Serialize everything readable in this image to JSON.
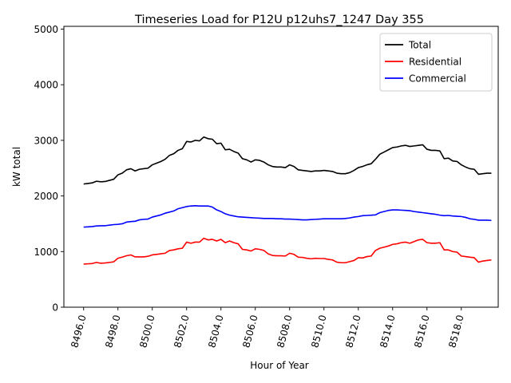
{
  "chart_data": {
    "type": "line",
    "title": "Timeseries Load for P12U p12uhs7_1247  Day 355",
    "xlabel": "Hour of Year",
    "ylabel": "kW total",
    "xlim": [
      8494.85,
      8520.15
    ],
    "ylim": [
      0,
      5050
    ],
    "x_ticks": [
      8496,
      8498,
      8500,
      8502,
      8504,
      8506,
      8508,
      8510,
      8512,
      8514,
      8516,
      8518
    ],
    "x_tick_labels": [
      "8496.0",
      "8498.0",
      "8500.0",
      "8502.0",
      "8504.0",
      "8506.0",
      "8508.0",
      "8510.0",
      "8512.0",
      "8514.0",
      "8516.0",
      "8518.0"
    ],
    "y_ticks": [
      0,
      1000,
      2000,
      3000,
      4000,
      5000
    ],
    "y_tick_labels": [
      "0",
      "1000",
      "2000",
      "3000",
      "4000",
      "5000"
    ],
    "grid": false,
    "legend_position": "top-right",
    "x_start": 8496.0,
    "x_step": 0.25,
    "series": [
      {
        "name": "Total",
        "color": "#000000",
        "values": [
          2215,
          2225,
          2235,
          2265,
          2255,
          2260,
          2280,
          2300,
          2380,
          2410,
          2470,
          2490,
          2450,
          2480,
          2490,
          2500,
          2560,
          2590,
          2620,
          2660,
          2730,
          2760,
          2820,
          2850,
          2980,
          2970,
          3000,
          2990,
          3060,
          3030,
          3020,
          2940,
          2950,
          2830,
          2840,
          2800,
          2770,
          2670,
          2650,
          2610,
          2650,
          2640,
          2610,
          2560,
          2530,
          2520,
          2520,
          2510,
          2560,
          2530,
          2470,
          2460,
          2450,
          2440,
          2450,
          2450,
          2460,
          2450,
          2440,
          2410,
          2400,
          2400,
          2420,
          2460,
          2510,
          2530,
          2560,
          2580,
          2660,
          2750,
          2790,
          2830,
          2870,
          2880,
          2900,
          2910,
          2890,
          2900,
          2910,
          2920,
          2840,
          2820,
          2820,
          2810,
          2670,
          2680,
          2630,
          2620,
          2560,
          2520,
          2490,
          2480,
          2390,
          2400,
          2410,
          2410
        ]
      },
      {
        "name": "Residential",
        "color": "#ff0000",
        "values": [
          775,
          780,
          785,
          805,
          790,
          795,
          805,
          815,
          880,
          900,
          925,
          940,
          905,
          905,
          905,
          915,
          940,
          950,
          960,
          970,
          1020,
          1030,
          1050,
          1060,
          1170,
          1150,
          1170,
          1170,
          1240,
          1210,
          1220,
          1190,
          1220,
          1160,
          1190,
          1160,
          1140,
          1040,
          1030,
          1010,
          1050,
          1040,
          1020,
          960,
          930,
          925,
          925,
          920,
          970,
          950,
          900,
          895,
          880,
          870,
          880,
          875,
          875,
          860,
          850,
          810,
          800,
          800,
          820,
          840,
          890,
          885,
          910,
          920,
          1020,
          1060,
          1080,
          1100,
          1130,
          1140,
          1160,
          1170,
          1150,
          1180,
          1210,
          1220,
          1160,
          1150,
          1150,
          1160,
          1030,
          1030,
          1000,
          990,
          920,
          910,
          900,
          890,
          810,
          830,
          840,
          850
        ]
      },
      {
        "name": "Commercial",
        "color": "#0000ff",
        "values": [
          1440,
          1445,
          1450,
          1460,
          1465,
          1465,
          1475,
          1485,
          1490,
          1500,
          1530,
          1540,
          1545,
          1570,
          1580,
          1585,
          1620,
          1640,
          1660,
          1690,
          1710,
          1730,
          1770,
          1790,
          1810,
          1820,
          1825,
          1820,
          1820,
          1820,
          1800,
          1750,
          1720,
          1680,
          1655,
          1640,
          1625,
          1620,
          1615,
          1610,
          1605,
          1600,
          1595,
          1595,
          1595,
          1590,
          1590,
          1585,
          1585,
          1580,
          1575,
          1570,
          1570,
          1575,
          1580,
          1585,
          1590,
          1590,
          1590,
          1590,
          1590,
          1595,
          1605,
          1620,
          1630,
          1645,
          1650,
          1655,
          1660,
          1700,
          1720,
          1740,
          1750,
          1750,
          1745,
          1740,
          1735,
          1720,
          1710,
          1700,
          1690,
          1680,
          1670,
          1655,
          1645,
          1650,
          1640,
          1635,
          1630,
          1615,
          1590,
          1580,
          1565,
          1565,
          1565,
          1560
        ]
      }
    ]
  }
}
